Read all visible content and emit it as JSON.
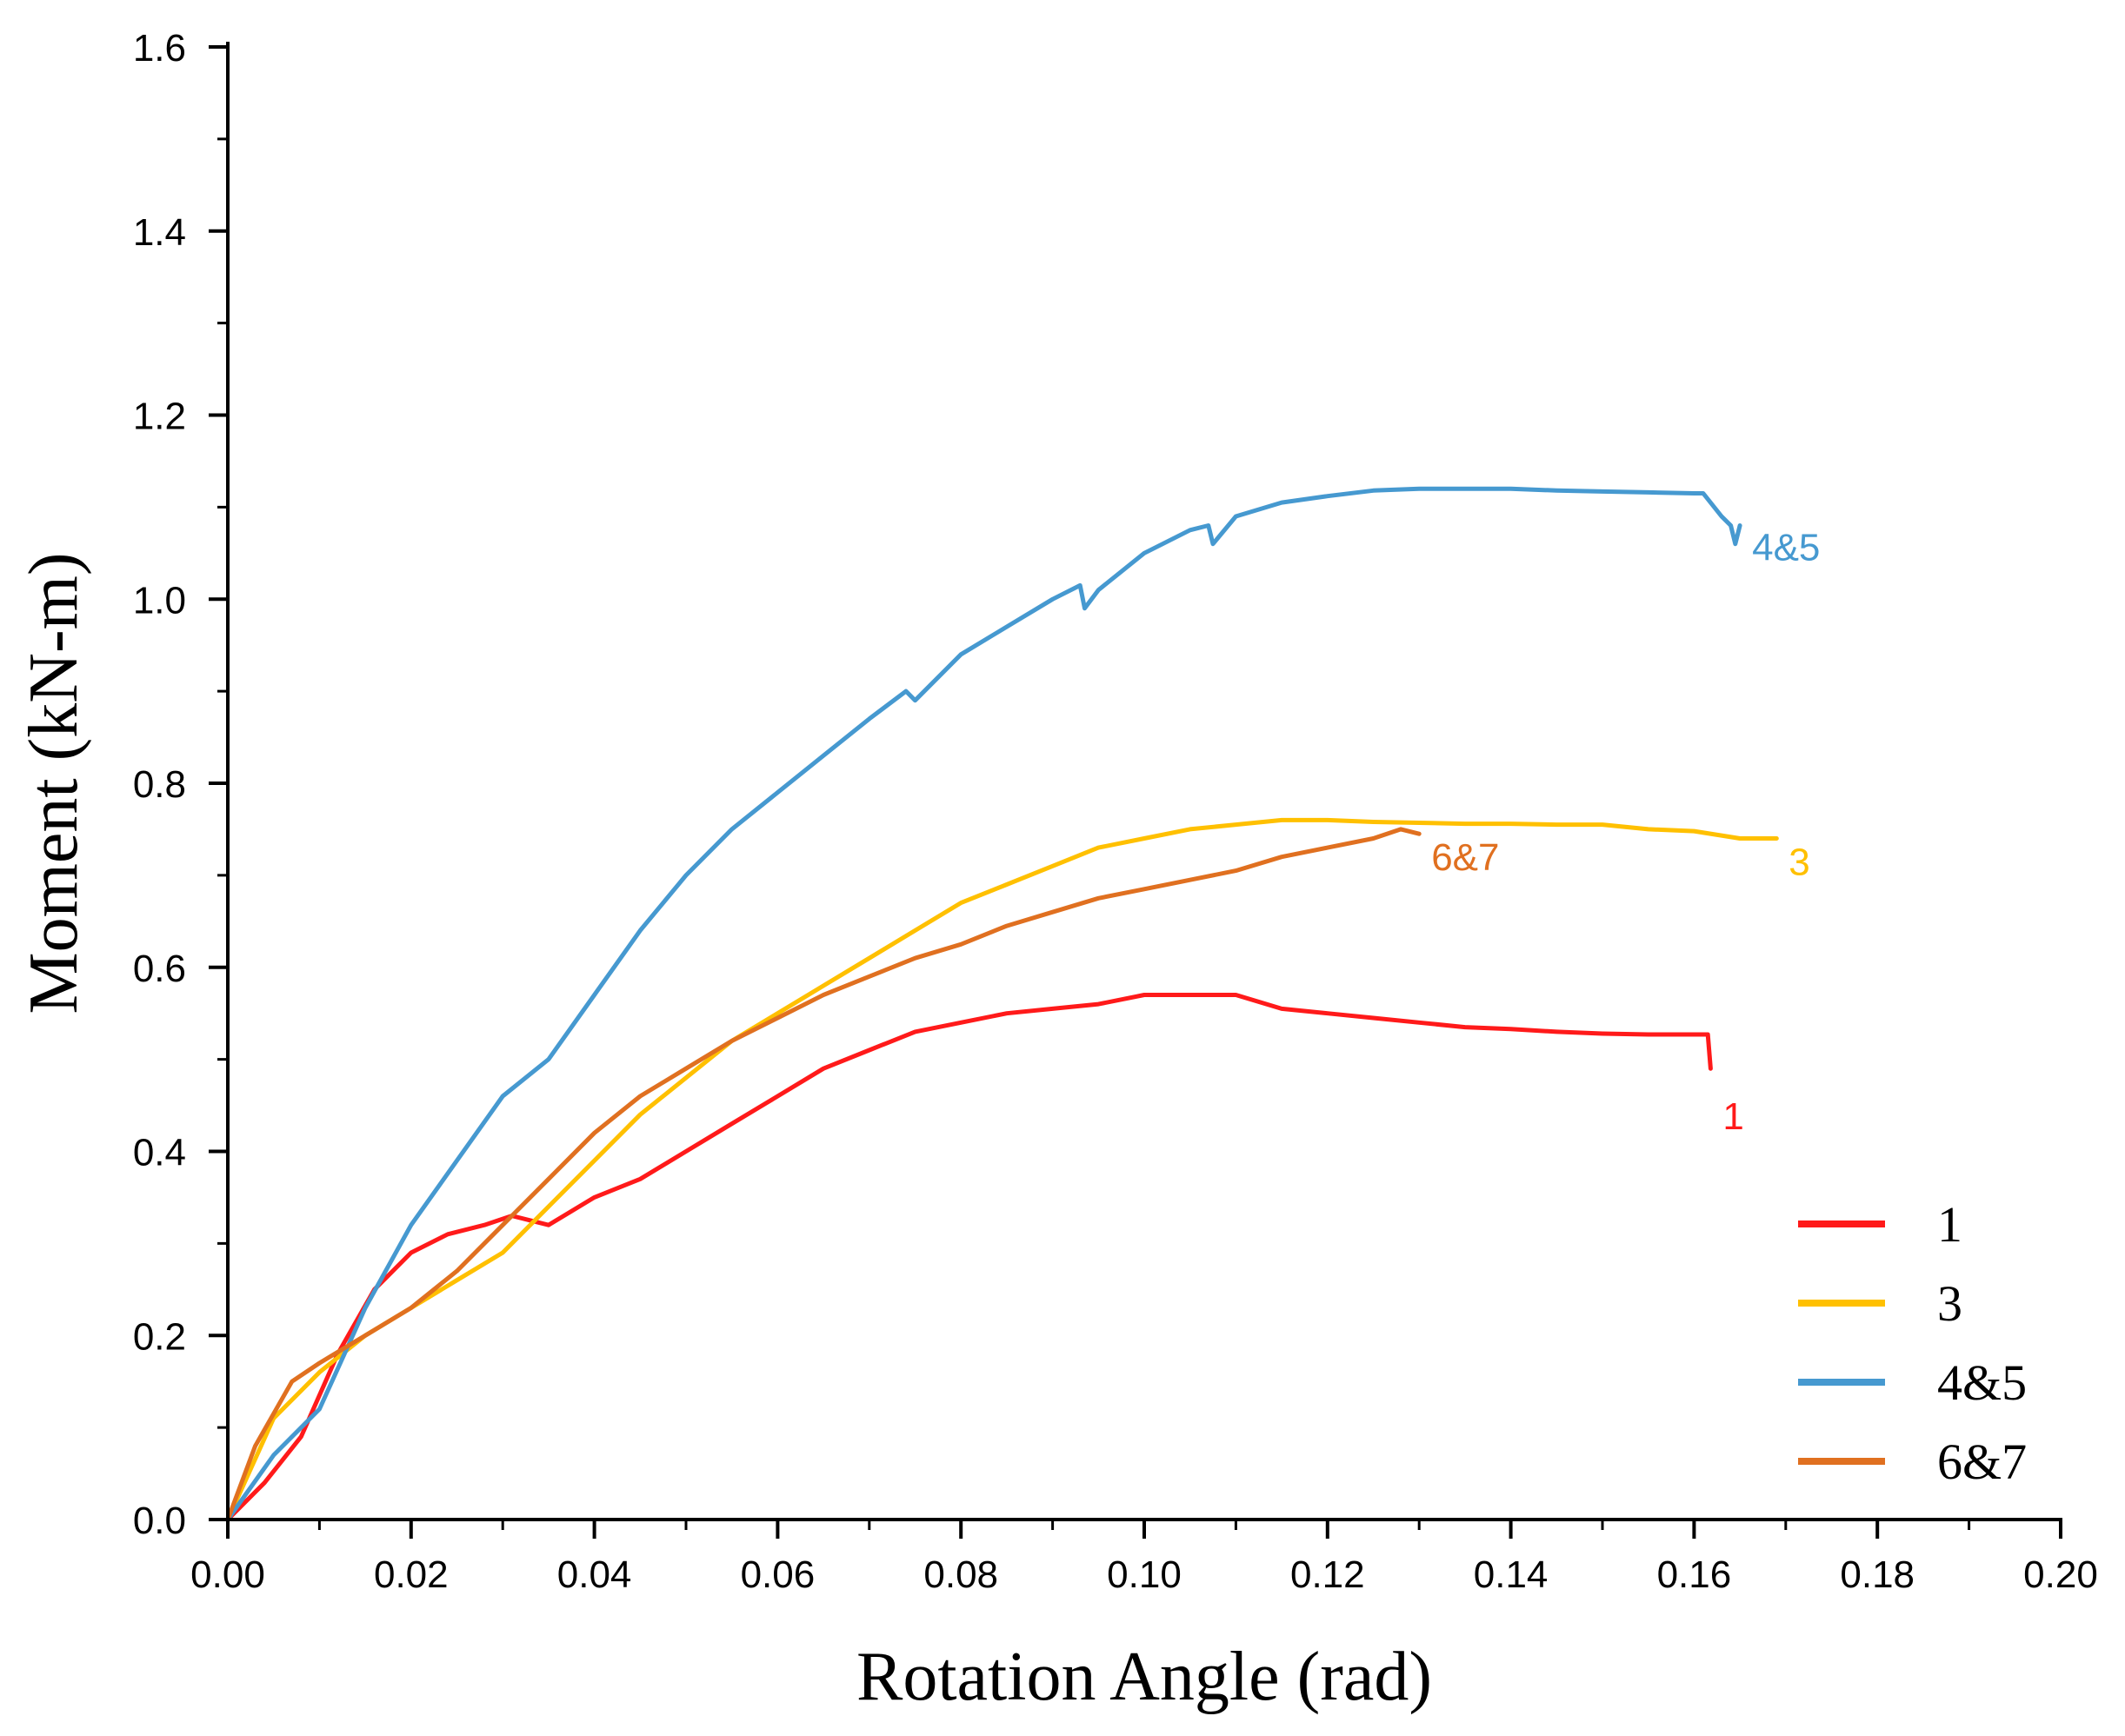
{
  "chart_data": {
    "type": "line",
    "title": "",
    "xlabel": "Rotation Angle (rad)",
    "ylabel": "Moment (kN-m)",
    "xlim": [
      0,
      0.2
    ],
    "ylim": [
      0,
      1.6
    ],
    "xticks": [
      "0.00",
      "0.02",
      "0.04",
      "0.06",
      "0.08",
      "0.10",
      "0.12",
      "0.14",
      "0.16",
      "0.18",
      "0.20"
    ],
    "yticks": [
      "0.0",
      "0.2",
      "0.4",
      "0.6",
      "0.8",
      "1.0",
      "1.2",
      "1.4",
      "1.6"
    ],
    "grid": false,
    "legend_position": "bottom-right",
    "series": [
      {
        "name": "1",
        "end_label": "1",
        "color": "#ff1a1a",
        "x": [
          0,
          0.004,
          0.008,
          0.012,
          0.016,
          0.02,
          0.024,
          0.028,
          0.031,
          0.035,
          0.04,
          0.045,
          0.05,
          0.055,
          0.06,
          0.065,
          0.07,
          0.075,
          0.08,
          0.085,
          0.09,
          0.095,
          0.1,
          0.105,
          0.11,
          0.115,
          0.12,
          0.125,
          0.13,
          0.135,
          0.14,
          0.145,
          0.15,
          0.155,
          0.16,
          0.1615,
          0.1618
        ],
        "y": [
          0,
          0.04,
          0.09,
          0.18,
          0.25,
          0.29,
          0.31,
          0.32,
          0.33,
          0.32,
          0.35,
          0.37,
          0.4,
          0.43,
          0.46,
          0.49,
          0.51,
          0.53,
          0.54,
          0.55,
          0.555,
          0.56,
          0.57,
          0.57,
          0.57,
          0.555,
          0.55,
          0.545,
          0.54,
          0.535,
          0.533,
          0.53,
          0.528,
          0.527,
          0.527,
          0.527,
          0.49
        ]
      },
      {
        "name": "3",
        "end_label": "3",
        "color": "#ffc000",
        "x": [
          0,
          0.005,
          0.01,
          0.015,
          0.02,
          0.025,
          0.03,
          0.035,
          0.04,
          0.045,
          0.05,
          0.055,
          0.06,
          0.065,
          0.07,
          0.075,
          0.08,
          0.085,
          0.09,
          0.095,
          0.1,
          0.105,
          0.11,
          0.115,
          0.12,
          0.125,
          0.13,
          0.135,
          0.14,
          0.145,
          0.15,
          0.155,
          0.16,
          0.165,
          0.169
        ],
        "y": [
          0,
          0.11,
          0.16,
          0.2,
          0.23,
          0.26,
          0.29,
          0.34,
          0.39,
          0.44,
          0.48,
          0.52,
          0.55,
          0.58,
          0.61,
          0.64,
          0.67,
          0.69,
          0.71,
          0.73,
          0.74,
          0.75,
          0.755,
          0.76,
          0.76,
          0.758,
          0.757,
          0.756,
          0.756,
          0.755,
          0.755,
          0.75,
          0.748,
          0.74,
          0.74
        ]
      },
      {
        "name": "4&5",
        "end_label": "4&5",
        "color": "#4699d0",
        "x": [
          0,
          0.005,
          0.01,
          0.015,
          0.02,
          0.025,
          0.03,
          0.035,
          0.04,
          0.045,
          0.05,
          0.055,
          0.06,
          0.065,
          0.07,
          0.074,
          0.075,
          0.08,
          0.085,
          0.09,
          0.093,
          0.0935,
          0.095,
          0.1,
          0.105,
          0.107,
          0.1075,
          0.11,
          0.115,
          0.12,
          0.125,
          0.13,
          0.135,
          0.14,
          0.145,
          0.15,
          0.155,
          0.16,
          0.161,
          0.163,
          0.164,
          0.1645,
          0.165
        ],
        "y": [
          0,
          0.07,
          0.12,
          0.23,
          0.32,
          0.39,
          0.46,
          0.5,
          0.57,
          0.64,
          0.7,
          0.75,
          0.79,
          0.83,
          0.87,
          0.9,
          0.89,
          0.94,
          0.97,
          1.0,
          1.015,
          0.99,
          1.01,
          1.05,
          1.075,
          1.08,
          1.06,
          1.09,
          1.105,
          1.112,
          1.118,
          1.12,
          1.12,
          1.12,
          1.118,
          1.117,
          1.116,
          1.115,
          1.115,
          1.09,
          1.08,
          1.06,
          1.08
        ]
      },
      {
        "name": "6&7",
        "end_label": "6&7",
        "color": "#e07020",
        "x": [
          0,
          0.003,
          0.007,
          0.01,
          0.015,
          0.02,
          0.025,
          0.03,
          0.035,
          0.04,
          0.045,
          0.05,
          0.055,
          0.06,
          0.065,
          0.07,
          0.075,
          0.08,
          0.085,
          0.09,
          0.095,
          0.1,
          0.105,
          0.11,
          0.115,
          0.12,
          0.125,
          0.128,
          0.13
        ],
        "y": [
          0,
          0.08,
          0.15,
          0.17,
          0.2,
          0.23,
          0.27,
          0.32,
          0.37,
          0.42,
          0.46,
          0.49,
          0.52,
          0.545,
          0.57,
          0.59,
          0.61,
          0.625,
          0.645,
          0.66,
          0.675,
          0.685,
          0.695,
          0.705,
          0.72,
          0.73,
          0.74,
          0.75,
          0.745
        ]
      }
    ]
  }
}
